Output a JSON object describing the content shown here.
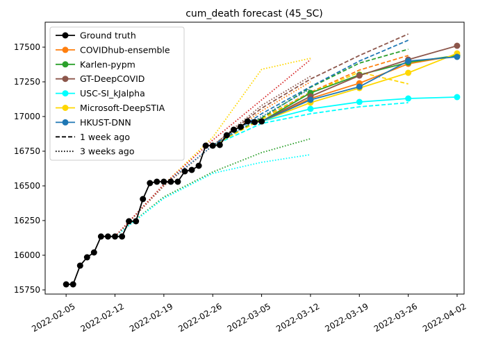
{
  "chart_data": {
    "type": "line",
    "title": "cum_death forecast (45_SC)",
    "xlabel": "",
    "ylabel": "",
    "x_ticks": [
      "2022-02-05",
      "2022-02-12",
      "2022-02-19",
      "2022-02-26",
      "2022-03-05",
      "2022-03-12",
      "2022-03-19",
      "2022-03-26",
      "2022-04-02"
    ],
    "y_ticks": [
      15750,
      16000,
      16250,
      16500,
      16750,
      17000,
      17250,
      17500
    ],
    "xlim": [
      "2022-02-02",
      "2022-04-03"
    ],
    "ylim": [
      15720,
      17680
    ],
    "grid": false,
    "legend_position": "top-left",
    "legend": [
      {
        "label": "Ground truth",
        "color": "#000000",
        "style": "solid",
        "marker": true
      },
      {
        "label": "COVIDhub-ensemble",
        "color": "#ff7f0e",
        "style": "solid",
        "marker": true
      },
      {
        "label": "Karlen-pypm",
        "color": "#2ca02c",
        "style": "solid",
        "marker": true
      },
      {
        "label": "GT-DeepCOVID",
        "color": "#8c564b",
        "style": "solid",
        "marker": true
      },
      {
        "label": "USC-SI_kJalpha",
        "color": "#00ffff",
        "style": "solid",
        "marker": true
      },
      {
        "label": "Microsoft-DeepSTIA",
        "color": "#ffd700",
        "style": "solid",
        "marker": true
      },
      {
        "label": "HKUST-DNN",
        "color": "#1f77b4",
        "style": "solid",
        "marker": true
      },
      {
        "label": "1 week ago",
        "color": "#000000",
        "style": "dashed",
        "marker": false
      },
      {
        "label": "3 weeks ago",
        "color": "#000000",
        "style": "dotted",
        "marker": false
      }
    ],
    "ground_truth": {
      "name": "Ground truth",
      "color": "#000000",
      "points": [
        [
          "2022-02-05",
          15790
        ],
        [
          "2022-02-06",
          15790
        ],
        [
          "2022-02-07",
          15925
        ],
        [
          "2022-02-08",
          15985
        ],
        [
          "2022-02-09",
          16020
        ],
        [
          "2022-02-10",
          16135
        ],
        [
          "2022-02-11",
          16135
        ],
        [
          "2022-02-12",
          16135
        ],
        [
          "2022-02-13",
          16135
        ],
        [
          "2022-02-14",
          16245
        ],
        [
          "2022-02-15",
          16245
        ],
        [
          "2022-02-16",
          16405
        ],
        [
          "2022-02-17",
          16520
        ],
        [
          "2022-02-18",
          16530
        ],
        [
          "2022-02-19",
          16530
        ],
        [
          "2022-02-20",
          16530
        ],
        [
          "2022-02-21",
          16530
        ],
        [
          "2022-02-22",
          16605
        ],
        [
          "2022-02-23",
          16615
        ],
        [
          "2022-02-24",
          16645
        ],
        [
          "2022-02-25",
          16790
        ],
        [
          "2022-02-26",
          16790
        ],
        [
          "2022-02-27",
          16795
        ],
        [
          "2022-02-28",
          16865
        ],
        [
          "2022-03-01",
          16905
        ],
        [
          "2022-03-02",
          16925
        ],
        [
          "2022-03-03",
          16965
        ],
        [
          "2022-03-04",
          16960
        ],
        [
          "2022-03-05",
          16965
        ]
      ]
    },
    "forecasts": [
      {
        "name": "COVIDhub-ensemble",
        "color": "#ff7f0e",
        "current": [
          [
            "2022-03-05",
            16965
          ],
          [
            "2022-03-12",
            17130
          ],
          [
            "2022-03-19",
            17240
          ],
          [
            "2022-03-26",
            17380
          ],
          [
            "2022-04-02",
            17440
          ]
        ],
        "week1": [
          [
            "2022-02-26",
            16790
          ],
          [
            "2022-03-05",
            16985
          ],
          [
            "2022-03-12",
            17175
          ],
          [
            "2022-03-19",
            17335
          ],
          [
            "2022-03-26",
            17440
          ]
        ],
        "week3": [
          [
            "2022-02-12",
            16135
          ],
          [
            "2022-02-19",
            16500
          ],
          [
            "2022-02-26",
            16790
          ],
          [
            "2022-03-05",
            17040
          ],
          [
            "2022-03-12",
            17250
          ]
        ]
      },
      {
        "name": "Karlen-pypm",
        "color": "#2ca02c",
        "current": [
          [
            "2022-03-05",
            16965
          ],
          [
            "2022-03-12",
            17170
          ],
          [
            "2022-03-19",
            17300
          ],
          [
            "2022-03-26",
            17390
          ],
          [
            "2022-04-02",
            17440
          ]
        ],
        "week1": [
          [
            "2022-02-26",
            16790
          ],
          [
            "2022-03-05",
            16990
          ],
          [
            "2022-03-12",
            17210
          ],
          [
            "2022-03-19",
            17385
          ],
          [
            "2022-03-26",
            17485
          ]
        ],
        "week3": [
          [
            "2022-02-12",
            16135
          ],
          [
            "2022-02-19",
            16420
          ],
          [
            "2022-02-26",
            16600
          ],
          [
            "2022-03-05",
            16740
          ],
          [
            "2022-03-12",
            16840
          ]
        ]
      },
      {
        "name": "GT-DeepCOVID",
        "color": "#8c564b",
        "current": [
          [
            "2022-03-05",
            16965
          ],
          [
            "2022-03-12",
            17145
          ],
          [
            "2022-03-19",
            17295
          ],
          [
            "2022-03-26",
            17410
          ],
          [
            "2022-04-02",
            17510
          ]
        ],
        "week1": [
          [
            "2022-02-26",
            16790
          ],
          [
            "2022-03-05",
            17060
          ],
          [
            "2022-03-12",
            17270
          ],
          [
            "2022-03-19",
            17440
          ],
          [
            "2022-03-26",
            17595
          ]
        ],
        "week3": [
          [
            "2022-02-12",
            16135
          ],
          [
            "2022-02-19",
            16500
          ],
          [
            "2022-02-26",
            16790
          ],
          [
            "2022-03-05",
            17080
          ],
          [
            "2022-03-12",
            17290
          ]
        ]
      },
      {
        "name": "USC-SI_kJalpha",
        "color": "#00ffff",
        "current": [
          [
            "2022-03-05",
            16965
          ],
          [
            "2022-03-12",
            17055
          ],
          [
            "2022-03-19",
            17105
          ],
          [
            "2022-03-26",
            17130
          ],
          [
            "2022-04-02",
            17140
          ]
        ],
        "week1": [
          [
            "2022-02-26",
            16790
          ],
          [
            "2022-03-05",
            16950
          ],
          [
            "2022-03-12",
            17020
          ],
          [
            "2022-03-19",
            17070
          ],
          [
            "2022-03-26",
            17100
          ]
        ],
        "week3": [
          [
            "2022-02-12",
            16135
          ],
          [
            "2022-02-19",
            16410
          ],
          [
            "2022-02-26",
            16590
          ],
          [
            "2022-03-05",
            16670
          ],
          [
            "2022-03-12",
            16725
          ]
        ]
      },
      {
        "name": "Microsoft-DeepSTIA",
        "color": "#ffd700",
        "current": [
          [
            "2022-03-05",
            16965
          ],
          [
            "2022-03-12",
            17100
          ],
          [
            "2022-03-19",
            17205
          ],
          [
            "2022-03-26",
            17315
          ],
          [
            "2022-04-02",
            17455
          ]
        ],
        "week1": [
          [
            "2022-02-26",
            16790
          ],
          [
            "2022-03-05",
            16980
          ],
          [
            "2022-03-12",
            17170
          ],
          [
            "2022-03-19",
            17320
          ],
          [
            "2022-03-26",
            17235
          ]
        ],
        "week3": [
          [
            "2022-02-12",
            16135
          ],
          [
            "2022-02-19",
            16510
          ],
          [
            "2022-02-26",
            16850
          ],
          [
            "2022-03-05",
            17340
          ],
          [
            "2022-03-12",
            17420
          ]
        ]
      },
      {
        "name": "HKUST-DNN",
        "color": "#1f77b4",
        "current": [
          [
            "2022-03-05",
            16965
          ],
          [
            "2022-03-12",
            17120
          ],
          [
            "2022-03-19",
            17215
          ],
          [
            "2022-03-26",
            17400
          ],
          [
            "2022-04-02",
            17430
          ]
        ],
        "week1": [
          [
            "2022-02-26",
            16790
          ],
          [
            "2022-03-05",
            17020
          ],
          [
            "2022-03-12",
            17215
          ],
          [
            "2022-03-19",
            17400
          ],
          [
            "2022-03-26",
            17550
          ]
        ],
        "week3": [
          [
            "2022-02-12",
            16135
          ],
          [
            "2022-02-19",
            16510
          ],
          [
            "2022-02-26",
            16790
          ],
          [
            "2022-03-05",
            17000
          ],
          [
            "2022-03-12",
            17200
          ]
        ]
      }
    ],
    "extra_dotted": [
      {
        "name": "red",
        "color": "#d62728",
        "points": [
          [
            "2022-02-12",
            16135
          ],
          [
            "2022-02-19",
            16510
          ],
          [
            "2022-02-26",
            16830
          ],
          [
            "2022-03-05",
            17120
          ],
          [
            "2022-03-12",
            17410
          ]
        ]
      }
    ]
  }
}
